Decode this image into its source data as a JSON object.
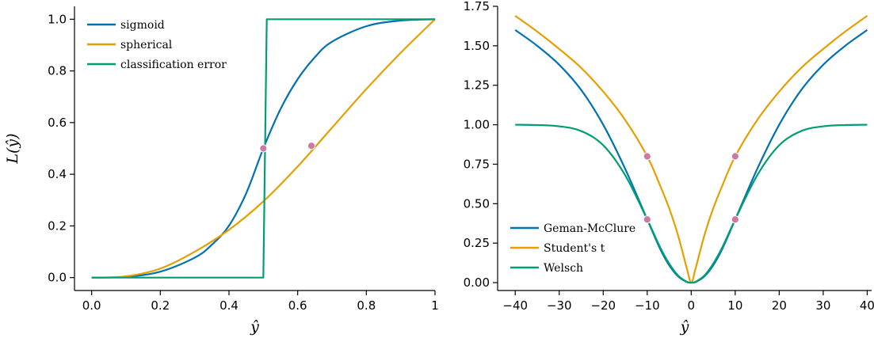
{
  "chart_data": [
    {
      "type": "line",
      "xlabel": "ŷ",
      "ylabel": "L(ŷ)",
      "xlim": [
        -0.05,
        1.0
      ],
      "ylim": [
        -0.05,
        1.05
      ],
      "xticks": [
        0.0,
        0.2,
        0.4,
        0.6,
        0.8,
        1.0
      ],
      "xtick_labels": [
        "0.0",
        "0.2",
        "0.4",
        "0.6",
        "0.8",
        "1"
      ],
      "yticks": [
        0.0,
        0.2,
        0.4,
        0.6,
        0.8,
        1.0
      ],
      "ytick_labels": [
        "0.0",
        "0.2",
        "0.4",
        "0.6",
        "0.8",
        "1.0"
      ],
      "grid": false,
      "legend": "top-left",
      "series": [
        {
          "name": "sigmoid",
          "color": "#0072b2",
          "x": [
            0.0,
            0.1,
            0.2,
            0.3,
            0.35,
            0.4,
            0.45,
            0.5,
            0.55,
            0.6,
            0.65,
            0.7,
            0.8,
            0.9,
            1.0
          ],
          "y": [
            0.0,
            0.003,
            0.023,
            0.077,
            0.127,
            0.201,
            0.326,
            0.5,
            0.652,
            0.768,
            0.853,
            0.913,
            0.973,
            0.995,
            1.0
          ]
        },
        {
          "name": "spherical",
          "color": "#e69f00",
          "x": [
            0.0,
            0.1,
            0.2,
            0.3,
            0.4,
            0.5,
            0.6,
            0.7,
            0.8,
            0.9,
            1.0
          ],
          "y": [
            0.0,
            0.005,
            0.035,
            0.1,
            0.185,
            0.295,
            0.43,
            0.58,
            0.73,
            0.87,
            1.0
          ]
        },
        {
          "name": "classification error",
          "color": "#009e73",
          "x": [
            0.0,
            0.5,
            0.51,
            1.0
          ],
          "y": [
            0.0,
            0.0,
            1.0,
            1.0
          ]
        }
      ],
      "markers": {
        "color": "#cc79a7",
        "points": [
          [
            0.5,
            0.5
          ],
          [
            0.64,
            0.51
          ]
        ]
      }
    },
    {
      "type": "line",
      "xlabel": "ŷ",
      "ylabel": "",
      "xlim": [
        -44,
        41
      ],
      "ylim": [
        -0.05,
        1.75
      ],
      "xticks": [
        -40,
        -30,
        -20,
        -10,
        0,
        10,
        20,
        30,
        40
      ],
      "xtick_labels": [
        "−40",
        "−30",
        "−20",
        "−10",
        "0",
        "10",
        "20",
        "30",
        "40"
      ],
      "yticks": [
        0.0,
        0.25,
        0.5,
        0.75,
        1.0,
        1.25,
        1.5,
        1.75
      ],
      "ytick_labels": [
        "0.00",
        "0.25",
        "0.50",
        "0.75",
        "1.00",
        "1.25",
        "1.50",
        "1.75"
      ],
      "grid": false,
      "legend": "lower-left",
      "series": [
        {
          "name": "Geman-McClure",
          "color": "#0072b2",
          "x": [
            -40,
            -35,
            -30,
            -25,
            -20,
            -15,
            -10,
            -7,
            -5,
            -3,
            -1,
            0,
            1,
            3,
            5,
            7,
            10,
            15,
            20,
            25,
            30,
            35,
            40
          ],
          "y": [
            1.6,
            1.5,
            1.38,
            1.22,
            1.0,
            0.72,
            0.4,
            0.21,
            0.11,
            0.04,
            0.004,
            0.0,
            0.004,
            0.04,
            0.11,
            0.21,
            0.4,
            0.72,
            1.0,
            1.22,
            1.38,
            1.5,
            1.6
          ]
        },
        {
          "name": "Student's t",
          "color": "#e69f00",
          "x": [
            -40,
            -35,
            -30,
            -25,
            -20,
            -15,
            -10,
            -7,
            -5,
            -3,
            -1,
            0,
            1,
            3,
            5,
            7,
            10,
            15,
            20,
            25,
            30,
            35,
            40
          ],
          "y": [
            1.69,
            1.59,
            1.48,
            1.36,
            1.21,
            1.03,
            0.8,
            0.61,
            0.47,
            0.3,
            0.09,
            0.0,
            0.09,
            0.3,
            0.47,
            0.61,
            0.8,
            1.03,
            1.21,
            1.36,
            1.48,
            1.59,
            1.69
          ]
        },
        {
          "name": "Welsch",
          "color": "#009e73",
          "x": [
            -40,
            -35,
            -30,
            -25,
            -20,
            -15,
            -10,
            -7,
            -5,
            -3,
            -1,
            0,
            1,
            3,
            5,
            7,
            10,
            15,
            20,
            25,
            30,
            35,
            40
          ],
          "y": [
            1.0,
            0.998,
            0.99,
            0.96,
            0.87,
            0.68,
            0.4,
            0.22,
            0.12,
            0.045,
            0.005,
            0.0,
            0.005,
            0.045,
            0.12,
            0.22,
            0.4,
            0.68,
            0.87,
            0.96,
            0.99,
            0.998,
            1.0
          ]
        }
      ],
      "markers": {
        "color": "#cc79a7",
        "points": [
          [
            -10,
            0.8
          ],
          [
            -10,
            0.4
          ],
          [
            10,
            0.8
          ],
          [
            10,
            0.4
          ]
        ]
      }
    }
  ]
}
